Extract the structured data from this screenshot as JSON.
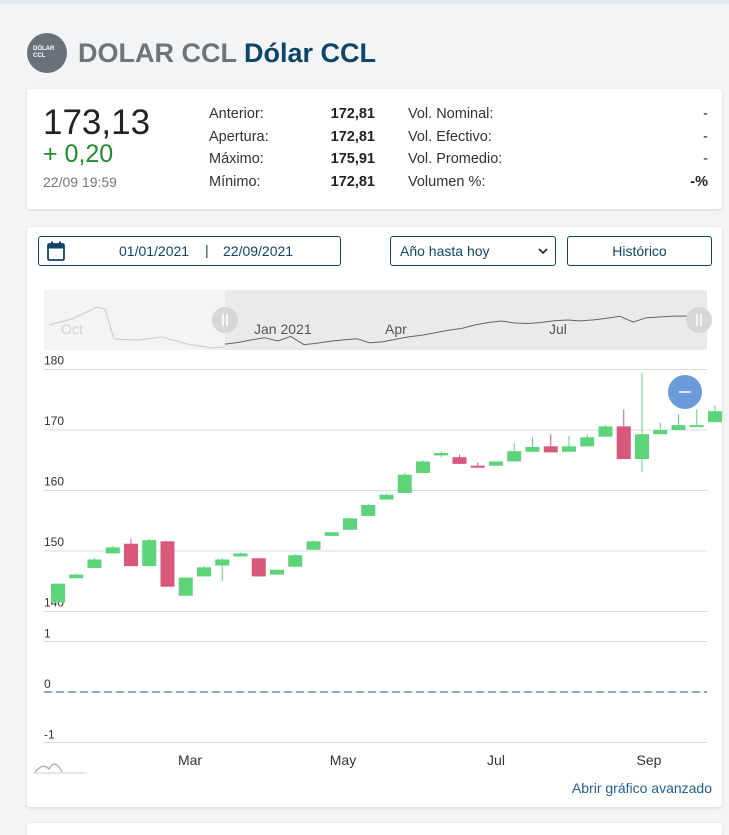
{
  "header": {
    "logo_line1": "DÓLAR",
    "logo_line2": "CCL",
    "symbol": "DOLAR CCL",
    "name": "Dólar CCL"
  },
  "quote": {
    "price": "173,13",
    "change": "+ 0,20",
    "timestamp": "22/09 19:59",
    "stats_left": [
      {
        "label": "Anterior:",
        "value": "172,81"
      },
      {
        "label": "Apertura:",
        "value": "172,81"
      },
      {
        "label": "Máximo:",
        "value": "175,91"
      },
      {
        "label": "Mínimo:",
        "value": "172,81"
      }
    ],
    "stats_right": [
      {
        "label": "Vol. Nominal:",
        "value": "-"
      },
      {
        "label": "Vol. Efectivo:",
        "value": "-"
      },
      {
        "label": "Vol. Promedio:",
        "value": "-"
      },
      {
        "label": "Volumen %:",
        "value": "-%"
      }
    ]
  },
  "controls": {
    "date_from": "01/01/2021",
    "date_separator": "|",
    "date_to": "22/09/2021",
    "period_selected": "Año hasta hoy",
    "historic_button": "Histórico"
  },
  "advanced_link": "Abrir gráfico avanzado",
  "colors": {
    "up": "#5dd47a",
    "down": "#d9577a",
    "brand": "#0f4565",
    "zoom_button": "#6b9bd8"
  },
  "chart_data": {
    "type": "candlestick",
    "navigator_labels": [
      "Oct",
      "Jan 2021",
      "Apr",
      "Jul"
    ],
    "price_axis": {
      "ticks": [
        140,
        150,
        160,
        170,
        180
      ],
      "ylim": [
        138,
        181
      ]
    },
    "volume_axis": {
      "ticks": [
        -1,
        0,
        1
      ],
      "ylim": [
        -1.2,
        1.8
      ]
    },
    "x_labels": [
      "Mar",
      "May",
      "Jul",
      "Sep"
    ],
    "candles": [
      {
        "o": 141.5,
        "h": 144.6,
        "l": 141.5,
        "c": 144.6
      },
      {
        "o": 145.5,
        "h": 146.3,
        "l": 145.5,
        "c": 146.1
      },
      {
        "o": 147.2,
        "h": 148.8,
        "l": 147.2,
        "c": 148.6
      },
      {
        "o": 149.6,
        "h": 150.8,
        "l": 149.6,
        "c": 150.6
      },
      {
        "o": 151.2,
        "h": 152.0,
        "l": 147.5,
        "c": 147.5
      },
      {
        "o": 147.5,
        "h": 152.0,
        "l": 147.5,
        "c": 151.8
      },
      {
        "o": 151.6,
        "h": 151.6,
        "l": 144.1,
        "c": 144.1
      },
      {
        "o": 142.6,
        "h": 145.6,
        "l": 142.6,
        "c": 145.6
      },
      {
        "o": 145.8,
        "h": 147.5,
        "l": 145.8,
        "c": 147.3
      },
      {
        "o": 147.6,
        "h": 148.8,
        "l": 145.0,
        "c": 148.6
      },
      {
        "o": 149.1,
        "h": 149.7,
        "l": 149.1,
        "c": 149.6
      },
      {
        "o": 148.8,
        "h": 148.8,
        "l": 145.8,
        "c": 145.8
      },
      {
        "o": 146.1,
        "h": 146.9,
        "l": 146.1,
        "c": 146.9
      },
      {
        "o": 147.4,
        "h": 149.5,
        "l": 147.4,
        "c": 149.3
      },
      {
        "o": 150.2,
        "h": 151.8,
        "l": 150.2,
        "c": 151.6
      },
      {
        "o": 152.5,
        "h": 153.1,
        "l": 152.5,
        "c": 153.1
      },
      {
        "o": 153.5,
        "h": 155.5,
        "l": 153.5,
        "c": 155.4
      },
      {
        "o": 155.8,
        "h": 157.8,
        "l": 155.8,
        "c": 157.6
      },
      {
        "o": 158.5,
        "h": 159.5,
        "l": 158.5,
        "c": 159.3
      },
      {
        "o": 159.6,
        "h": 162.9,
        "l": 159.6,
        "c": 162.6
      },
      {
        "o": 162.9,
        "h": 165.0,
        "l": 162.9,
        "c": 164.8
      },
      {
        "o": 165.8,
        "h": 166.5,
        "l": 165.5,
        "c": 166.2
      },
      {
        "o": 165.5,
        "h": 165.9,
        "l": 164.4,
        "c": 164.4
      },
      {
        "o": 164.1,
        "h": 164.6,
        "l": 163.8,
        "c": 163.9
      },
      {
        "o": 164.1,
        "h": 164.8,
        "l": 164.1,
        "c": 164.8
      },
      {
        "o": 164.8,
        "h": 167.8,
        "l": 164.8,
        "c": 166.5
      },
      {
        "o": 166.4,
        "h": 168.8,
        "l": 166.4,
        "c": 167.2
      },
      {
        "o": 167.3,
        "h": 169.3,
        "l": 166.3,
        "c": 166.3
      },
      {
        "o": 166.4,
        "h": 169.0,
        "l": 166.4,
        "c": 167.3
      },
      {
        "o": 167.3,
        "h": 169.3,
        "l": 167.3,
        "c": 168.8
      },
      {
        "o": 168.9,
        "h": 170.8,
        "l": 168.9,
        "c": 170.6
      },
      {
        "o": 170.6,
        "h": 173.4,
        "l": 165.2,
        "c": 165.2
      },
      {
        "o": 165.2,
        "h": 179.4,
        "l": 163.0,
        "c": 169.3
      },
      {
        "o": 169.3,
        "h": 171.2,
        "l": 169.3,
        "c": 170.0
      },
      {
        "o": 170.0,
        "h": 172.6,
        "l": 170.0,
        "c": 170.8
      },
      {
        "o": 170.8,
        "h": 173.4,
        "l": 170.8,
        "c": 170.8
      },
      {
        "o": 171.3,
        "h": 174.1,
        "l": 171.3,
        "c": 173.1
      }
    ]
  }
}
